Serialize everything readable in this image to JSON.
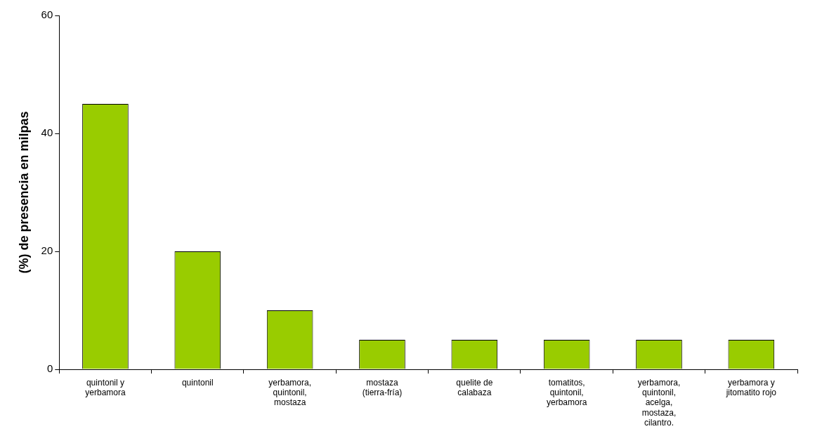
{
  "chart_data": {
    "type": "bar",
    "ylabel": "(%) de presencia en milpas",
    "categories": [
      "quintonil y yerbamora",
      "quintonil",
      "yerbamora, quintonil, mostaza",
      "mostaza  (tierra-fría)",
      "quelite de calabaza",
      "tomatitos, quintonil, yerbamora",
      "yerbamora, quintonil, acelga, mostaza, cilantro.",
      "yerbamora y jitomatito rojo"
    ],
    "values": [
      45,
      20,
      10,
      5,
      5,
      5,
      5,
      5
    ],
    "color": "#99cc00",
    "ylim": [
      0,
      60
    ],
    "yticks": [
      0,
      20,
      40,
      60
    ],
    "grid": false,
    "legend": false
  }
}
